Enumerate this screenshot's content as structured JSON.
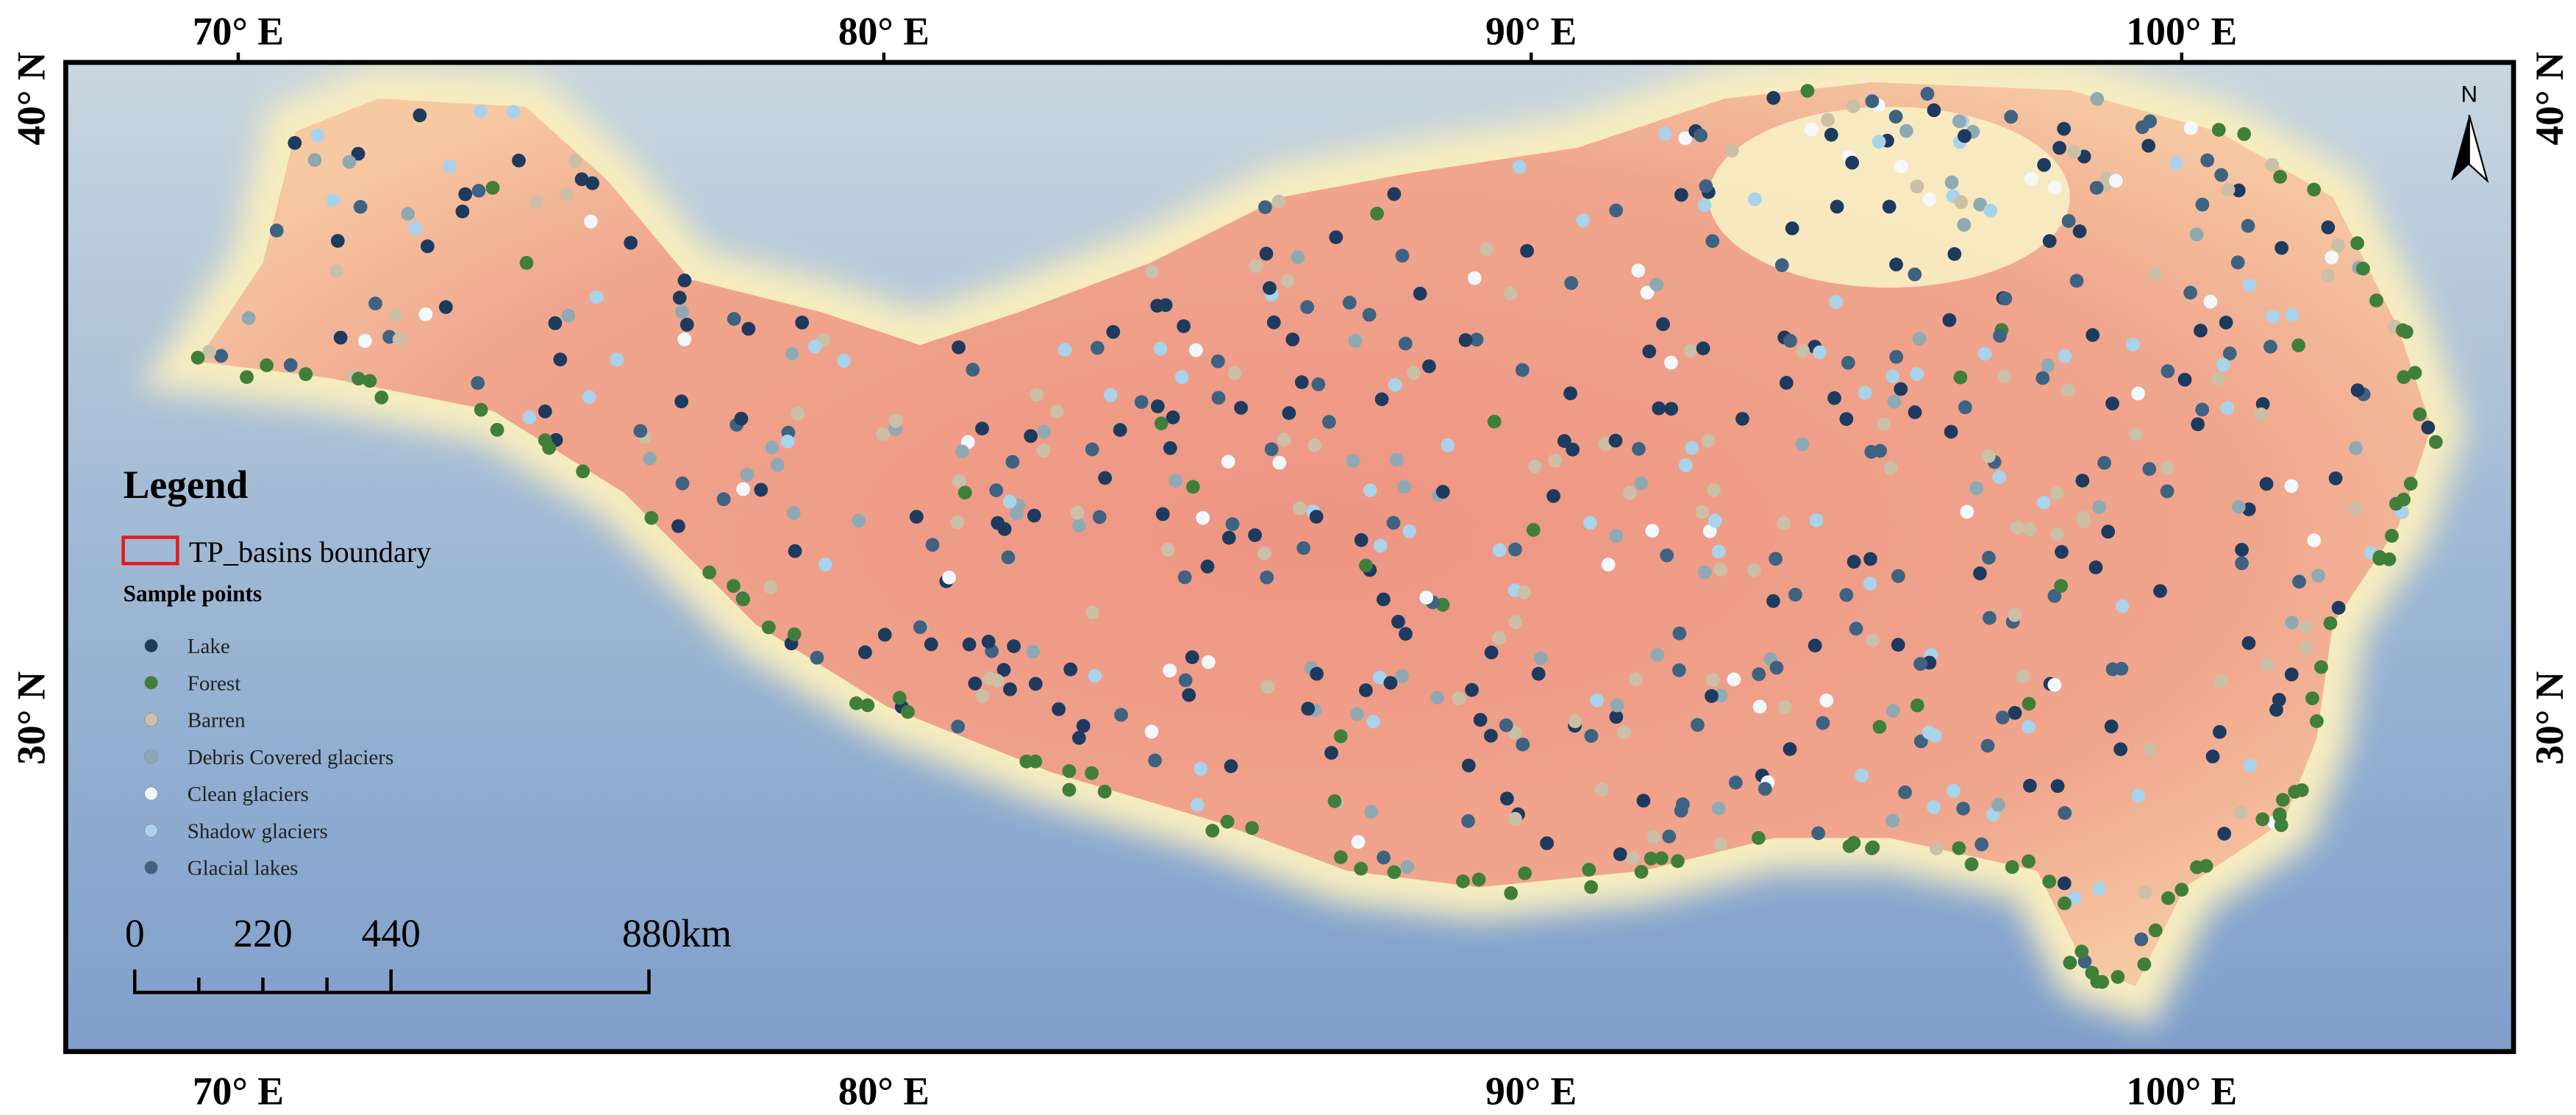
{
  "map": {
    "graticule": {
      "longitudes": [
        "70° E",
        "80° E",
        "90° E",
        "100° E"
      ],
      "latitudes": [
        "40° N",
        "30° N"
      ]
    },
    "north_arrow": "N",
    "legend": {
      "title": "Legend",
      "boundary": "TP_basins boundary",
      "points_title": "Sample points",
      "items": [
        {
          "label": "Lake",
          "color": "#1d3a5f"
        },
        {
          "label": "Forest",
          "color": "#3f7f3a"
        },
        {
          "label": "Barren",
          "color": "#cbbfa6"
        },
        {
          "label": "Debris Covered glaciers",
          "color": "#8fa9b3"
        },
        {
          "label": "Clean glaciers",
          "color": "#f4f8fc"
        },
        {
          "label": "Shadow glaciers",
          "color": "#a9d3ea"
        },
        {
          "label": "Glacial lakes",
          "color": "#3e6282"
        }
      ]
    },
    "scale_bar": [
      "0",
      "220",
      "440",
      "880km"
    ]
  }
}
